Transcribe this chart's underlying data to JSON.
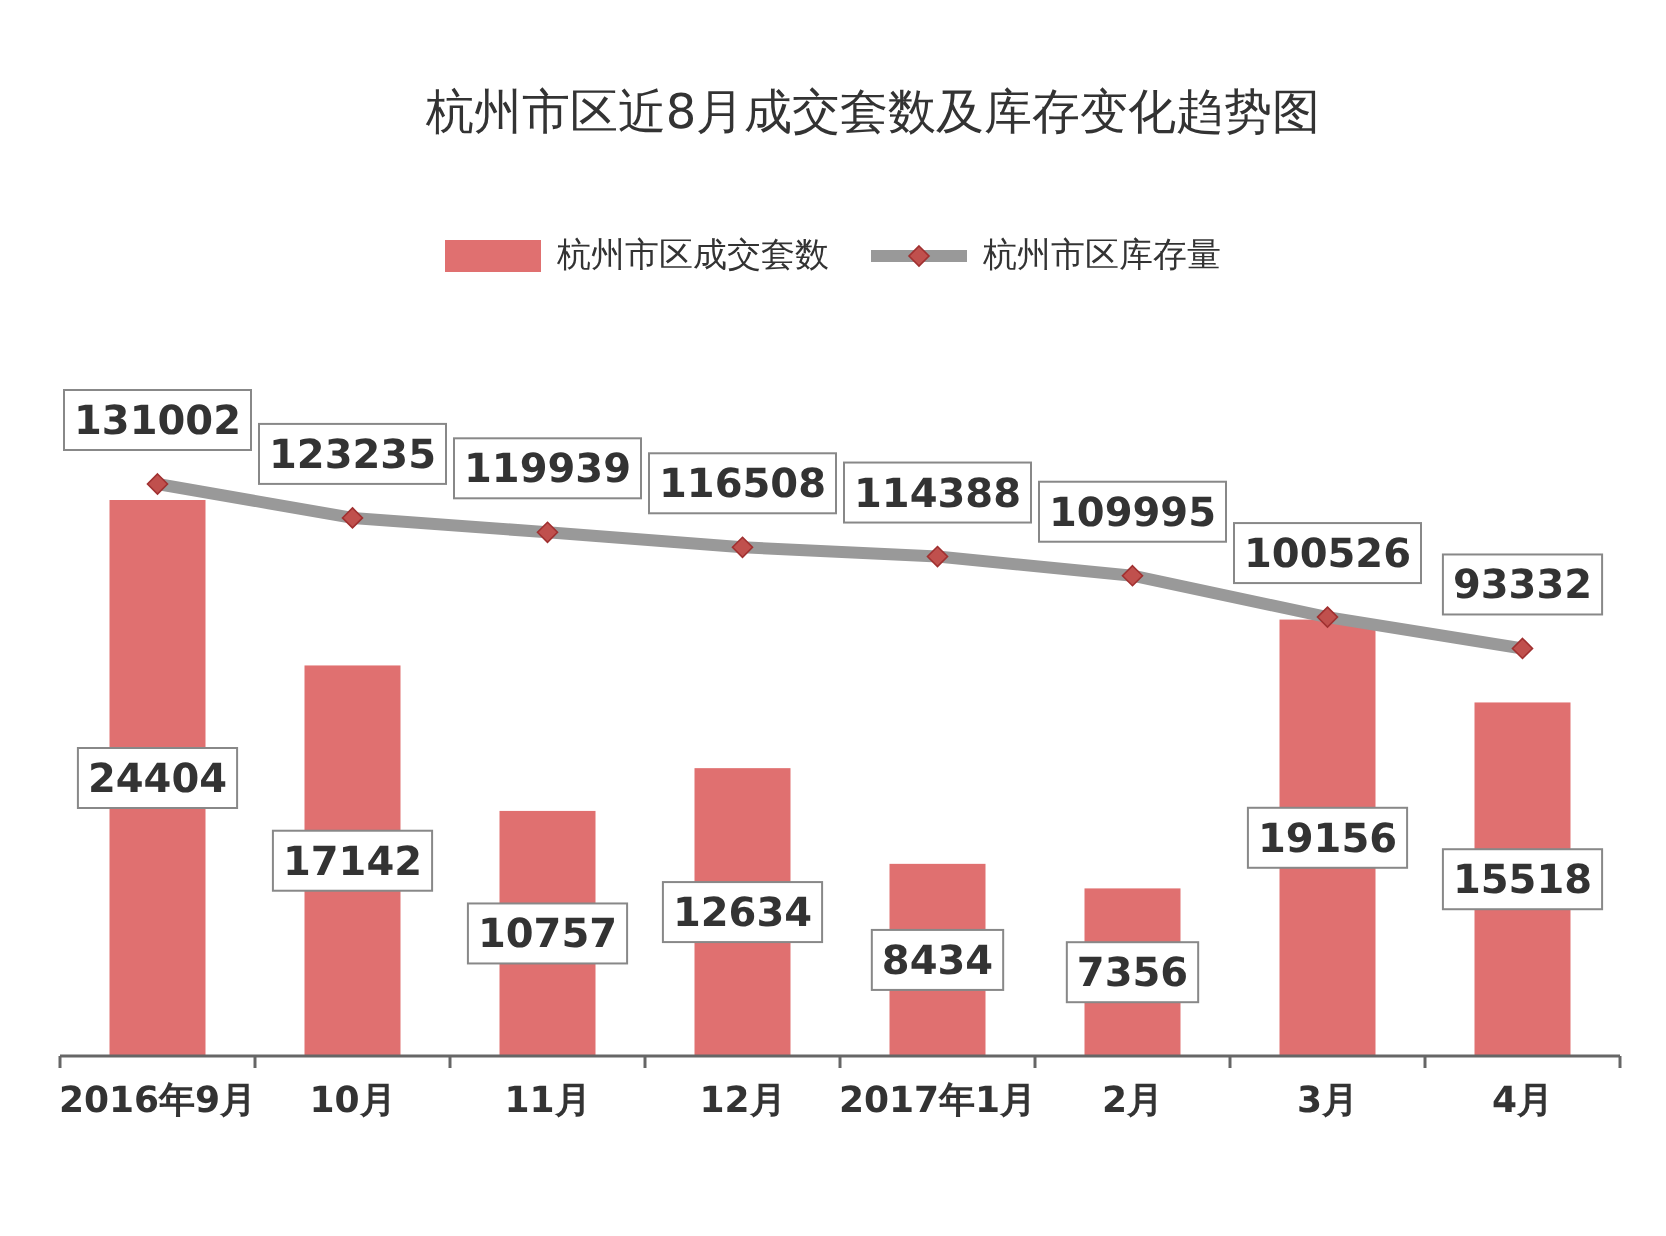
{
  "chart_data": {
    "type": "bar",
    "title": "杭州市区近8月成交套数及库存变化趋势图",
    "categories": [
      "2016年9月",
      "10月",
      "11月",
      "12月",
      "2017年1月",
      "2月",
      "3月",
      "4月"
    ],
    "series": [
      {
        "name": "杭州市区成交套数",
        "color": "#e07070",
        "values": [
          24404,
          17142,
          10757,
          12634,
          8434,
          7356,
          19156,
          15518
        ]
      },
      {
        "name": "杭州市区库存量",
        "type": "line",
        "axis": "y2",
        "color": "#999999",
        "marker": "diamond",
        "values": [
          131002,
          123235,
          119939,
          116508,
          114388,
          109995,
          100526,
          93332
        ]
      }
    ],
    "tick_labels": "x",
    "data_labels": true,
    "legend": "top"
  }
}
